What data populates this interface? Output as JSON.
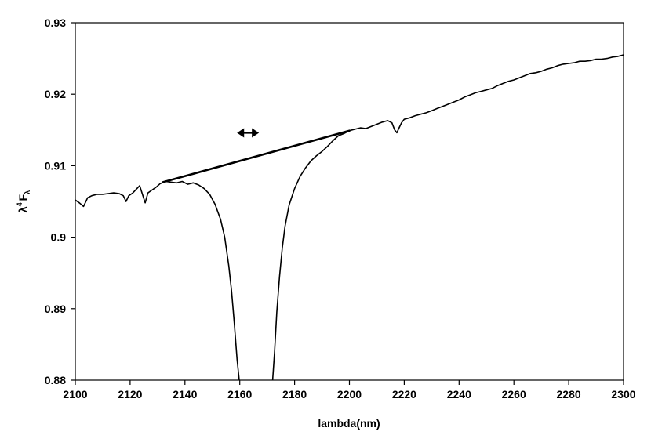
{
  "chart_data": {
    "type": "line",
    "title": "",
    "xlabel": "lambda(nm)",
    "ylabel": {
      "base": "λ",
      "superscript": "4",
      "symbol": "F",
      "subscript": "λ"
    },
    "xlim": [
      2100,
      2300
    ],
    "ylim": [
      0.88,
      0.93
    ],
    "x_ticks": [
      "2100",
      "2120",
      "2140",
      "2160",
      "2180",
      "2200",
      "2220",
      "2240",
      "2260",
      "2280",
      "2300"
    ],
    "y_ticks": [
      "0.88",
      "0.89",
      "0.9",
      "0.91",
      "0.92",
      "0.93"
    ],
    "grid": false,
    "legend": "none",
    "line_color": "#000000",
    "series": [
      {
        "values": [
          [
            2100,
            0.9052
          ],
          [
            2101.5,
            0.9048
          ],
          [
            2103,
            0.9043
          ],
          [
            2104.5,
            0.9055
          ],
          [
            2106,
            0.9058
          ],
          [
            2108,
            0.906
          ],
          [
            2110,
            0.906
          ],
          [
            2112,
            0.9061
          ],
          [
            2114,
            0.9062
          ],
          [
            2116,
            0.9061
          ],
          [
            2117.5,
            0.9058
          ],
          [
            2118.5,
            0.905
          ],
          [
            2119.5,
            0.9058
          ],
          [
            2121,
            0.9062
          ],
          [
            2122.5,
            0.9068
          ],
          [
            2123.5,
            0.9072
          ],
          [
            2124.5,
            0.906
          ],
          [
            2125.5,
            0.9048
          ],
          [
            2126.5,
            0.9062
          ],
          [
            2128,
            0.9066
          ],
          [
            2129.5,
            0.907
          ],
          [
            2131,
            0.9075
          ],
          [
            2133,
            0.9078
          ],
          [
            2135,
            0.9077
          ],
          [
            2137,
            0.9076
          ],
          [
            2139,
            0.9078
          ],
          [
            2141,
            0.9074
          ],
          [
            2143,
            0.9076
          ],
          [
            2145,
            0.9073
          ],
          [
            2147,
            0.9068
          ],
          [
            2149,
            0.906
          ],
          [
            2151,
            0.9046
          ],
          [
            2153,
            0.9025
          ],
          [
            2154.5,
            0.9
          ],
          [
            2156,
            0.896
          ],
          [
            2157,
            0.8925
          ],
          [
            2158,
            0.888
          ],
          [
            2159,
            0.883
          ],
          [
            2159.8,
            0.88
          ]
        ]
      },
      {
        "values": [
          [
            2172,
            0.88
          ],
          [
            2172.7,
            0.884
          ],
          [
            2173.5,
            0.8895
          ],
          [
            2174.5,
            0.8945
          ],
          [
            2175.5,
            0.8985
          ],
          [
            2176.5,
            0.9015
          ],
          [
            2178,
            0.9045
          ],
          [
            2180,
            0.9068
          ],
          [
            2182,
            0.9085
          ],
          [
            2184,
            0.9097
          ],
          [
            2186,
            0.9107
          ],
          [
            2188,
            0.9114
          ],
          [
            2190,
            0.912
          ],
          [
            2192,
            0.9127
          ],
          [
            2194,
            0.9135
          ],
          [
            2196,
            0.9142
          ],
          [
            2198,
            0.9145
          ],
          [
            2200,
            0.9149
          ],
          [
            2202,
            0.9151
          ],
          [
            2204,
            0.9153
          ],
          [
            2206,
            0.9152
          ],
          [
            2208,
            0.9155
          ],
          [
            2210,
            0.9158
          ],
          [
            2212,
            0.9161
          ],
          [
            2214,
            0.9163
          ],
          [
            2215.5,
            0.916
          ],
          [
            2216.5,
            0.915
          ],
          [
            2217.3,
            0.9146
          ],
          [
            2218,
            0.9152
          ],
          [
            2219,
            0.916
          ],
          [
            2220,
            0.9165
          ],
          [
            2222,
            0.9167
          ],
          [
            2224,
            0.917
          ],
          [
            2226,
            0.9172
          ],
          [
            2228,
            0.9174
          ],
          [
            2230,
            0.9177
          ],
          [
            2232,
            0.918
          ],
          [
            2234,
            0.9183
          ],
          [
            2236,
            0.9186
          ],
          [
            2238,
            0.9189
          ],
          [
            2240,
            0.9192
          ],
          [
            2242,
            0.9196
          ],
          [
            2244,
            0.9199
          ],
          [
            2246,
            0.9202
          ],
          [
            2248,
            0.9204
          ],
          [
            2250,
            0.9206
          ],
          [
            2252,
            0.9208
          ],
          [
            2254,
            0.9212
          ],
          [
            2256,
            0.9215
          ],
          [
            2258,
            0.9218
          ],
          [
            2260,
            0.922
          ],
          [
            2262,
            0.9223
          ],
          [
            2264,
            0.9226
          ],
          [
            2266,
            0.9229
          ],
          [
            2268,
            0.923
          ],
          [
            2270,
            0.9232
          ],
          [
            2272,
            0.9235
          ],
          [
            2274,
            0.9237
          ],
          [
            2276,
            0.924
          ],
          [
            2278,
            0.9242
          ],
          [
            2280,
            0.9243
          ],
          [
            2282,
            0.9244
          ],
          [
            2284,
            0.9246
          ],
          [
            2286,
            0.9246
          ],
          [
            2288,
            0.9247
          ],
          [
            2290,
            0.9249
          ],
          [
            2292,
            0.9249
          ],
          [
            2294,
            0.925
          ],
          [
            2296,
            0.9252
          ],
          [
            2298,
            0.9253
          ],
          [
            2300,
            0.9255
          ]
        ]
      }
    ],
    "annotations": {
      "continuum_line": [
        [
          2132,
          0.9077
        ],
        [
          2200,
          0.9149
        ]
      ],
      "double_arrow": {
        "x": [
          2159,
          2167
        ],
        "y": 0.9146
      }
    }
  }
}
